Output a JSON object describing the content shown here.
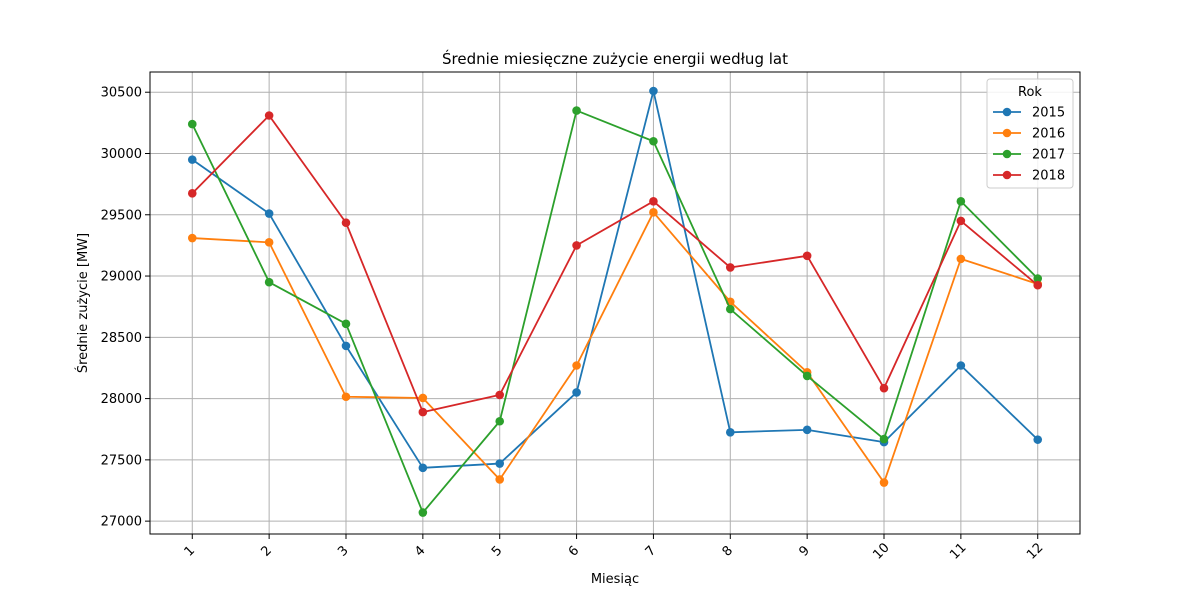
{
  "chart_data": {
    "type": "line",
    "title": "Średnie miesięczne zużycie energii według lat",
    "xlabel": "Miesiąc",
    "ylabel": "Średnie zużycie [MW]",
    "x": [
      1,
      2,
      3,
      4,
      5,
      6,
      7,
      8,
      9,
      10,
      11,
      12
    ],
    "x_tick_labels": [
      "1",
      "2",
      "3",
      "4",
      "5",
      "6",
      "7",
      "8",
      "9",
      "10",
      "11",
      "12"
    ],
    "y_ticks": [
      27000,
      27500,
      28000,
      28500,
      29000,
      29500,
      30000,
      30500
    ],
    "y_tick_labels": [
      "27000",
      "27500",
      "28000",
      "28500",
      "29000",
      "29500",
      "30000",
      "30500"
    ],
    "ylim": [
      26895,
      30665
    ],
    "xlim": [
      0.45,
      12.55
    ],
    "grid": true,
    "legend": {
      "title": "Rok",
      "placement": "top-right"
    },
    "series": [
      {
        "name": "2015",
        "color": "#1f77b4",
        "values": [
          29950,
          29510,
          28430,
          27435,
          27470,
          28050,
          30510,
          27725,
          27745,
          27645,
          28270,
          27665
        ]
      },
      {
        "name": "2016",
        "color": "#ff7f0e",
        "values": [
          29310,
          29275,
          28015,
          28005,
          27340,
          28270,
          29520,
          28790,
          28215,
          27315,
          29140,
          28935
        ]
      },
      {
        "name": "2017",
        "color": "#2ca02c",
        "values": [
          30240,
          28950,
          28610,
          27070,
          27815,
          30350,
          30100,
          28730,
          28185,
          27670,
          29610,
          28980
        ]
      },
      {
        "name": "2018",
        "color": "#d62728",
        "values": [
          29675,
          30310,
          29435,
          27890,
          28030,
          29250,
          29610,
          29070,
          29165,
          28085,
          29450,
          28925
        ]
      }
    ]
  }
}
